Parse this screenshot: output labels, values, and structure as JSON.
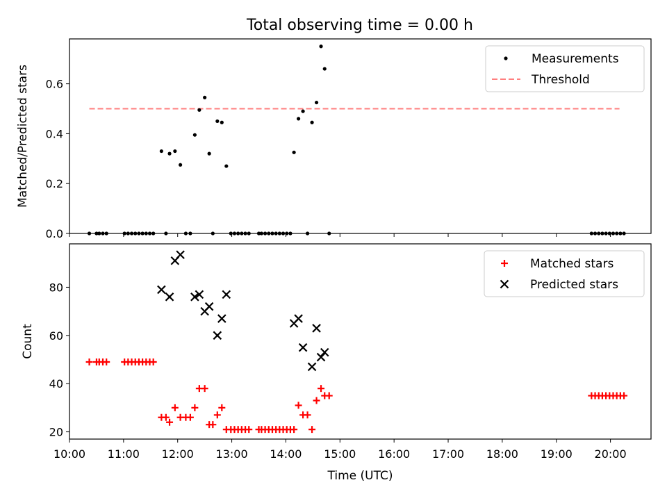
{
  "title": "Total observing time = 0.00 h",
  "chart_data": [
    {
      "type": "scatter",
      "ylabel": "Matched/Predicted stars",
      "xlim": [
        "10:00",
        "20:45"
      ],
      "ylim": [
        0,
        0.78
      ],
      "yticks": [
        0.0,
        0.2,
        0.4,
        0.6
      ],
      "legend": {
        "placement": "top-right",
        "entries": [
          "Measurements",
          "Threshold"
        ]
      },
      "threshold": {
        "name": "Threshold",
        "y": 0.5,
        "x_start": "10:22",
        "x_end": "20:10",
        "color": "#ff7f7f",
        "style": "dashed"
      },
      "series": [
        {
          "name": "Measurements",
          "marker": "dot",
          "color": "#000000",
          "points": [
            [
              "10:22",
              0
            ],
            [
              "10:30",
              0
            ],
            [
              "10:33",
              0
            ],
            [
              "10:37",
              0
            ],
            [
              "10:41",
              0
            ],
            [
              "11:01",
              0
            ],
            [
              "11:05",
              0
            ],
            [
              "11:09",
              0
            ],
            [
              "11:13",
              0
            ],
            [
              "11:17",
              0
            ],
            [
              "11:21",
              0
            ],
            [
              "11:25",
              0
            ],
            [
              "11:29",
              0
            ],
            [
              "11:33",
              0
            ],
            [
              "11:42",
              0.33
            ],
            [
              "11:47",
              0
            ],
            [
              "11:51",
              0.32
            ],
            [
              "11:57",
              0.33
            ],
            [
              "12:03",
              0.275
            ],
            [
              "12:09",
              0
            ],
            [
              "12:14",
              0
            ],
            [
              "12:19",
              0.395
            ],
            [
              "12:24",
              0.495
            ],
            [
              "12:30",
              0.545
            ],
            [
              "12:35",
              0.32
            ],
            [
              "12:39",
              0
            ],
            [
              "12:44",
              0.45
            ],
            [
              "12:49",
              0.445
            ],
            [
              "12:54",
              0.27
            ],
            [
              "12:59",
              0
            ],
            [
              "13:03",
              0
            ],
            [
              "13:07",
              0
            ],
            [
              "13:11",
              0
            ],
            [
              "13:15",
              0
            ],
            [
              "13:19",
              0
            ],
            [
              "13:30",
              0
            ],
            [
              "13:33",
              0
            ],
            [
              "13:37",
              0
            ],
            [
              "13:41",
              0
            ],
            [
              "13:45",
              0
            ],
            [
              "13:49",
              0
            ],
            [
              "13:53",
              0
            ],
            [
              "13:57",
              0
            ],
            [
              "14:01",
              0
            ],
            [
              "14:05",
              0
            ],
            [
              "14:09",
              0.325
            ],
            [
              "14:14",
              0.46
            ],
            [
              "14:19",
              0.49
            ],
            [
              "14:24",
              0
            ],
            [
              "14:29",
              0.445
            ],
            [
              "14:34",
              0.525
            ],
            [
              "14:39",
              0.75
            ],
            [
              "14:43",
              0.66
            ],
            [
              "14:48",
              0
            ],
            [
              "19:39",
              0
            ],
            [
              "19:43",
              0
            ],
            [
              "19:47",
              0
            ],
            [
              "19:51",
              0
            ],
            [
              "19:55",
              0
            ],
            [
              "19:59",
              0
            ],
            [
              "20:03",
              0
            ],
            [
              "20:07",
              0
            ],
            [
              "20:11",
              0
            ],
            [
              "20:15",
              0
            ]
          ]
        }
      ]
    },
    {
      "type": "scatter",
      "title": "",
      "xlabel": "Time (UTC)",
      "ylabel": "Count",
      "xlim": [
        "10:00",
        "20:45"
      ],
      "ylim": [
        17,
        98
      ],
      "yticks": [
        20,
        40,
        60,
        80
      ],
      "xticks": [
        "10:00",
        "11:00",
        "12:00",
        "13:00",
        "14:00",
        "15:00",
        "16:00",
        "17:00",
        "18:00",
        "19:00",
        "20:00"
      ],
      "legend": {
        "placement": "top-right",
        "entries": [
          "Matched stars",
          "Predicted stars"
        ]
      },
      "series": [
        {
          "name": "Matched stars",
          "marker": "plus",
          "color": "#ff0000",
          "points": [
            [
              "10:22",
              49
            ],
            [
              "10:30",
              49
            ],
            [
              "10:33",
              49
            ],
            [
              "10:37",
              49
            ],
            [
              "10:41",
              49
            ],
            [
              "11:01",
              49
            ],
            [
              "11:05",
              49
            ],
            [
              "11:09",
              49
            ],
            [
              "11:13",
              49
            ],
            [
              "11:17",
              49
            ],
            [
              "11:21",
              49
            ],
            [
              "11:25",
              49
            ],
            [
              "11:29",
              49
            ],
            [
              "11:33",
              49
            ],
            [
              "11:42",
              26
            ],
            [
              "11:47",
              26
            ],
            [
              "11:51",
              24
            ],
            [
              "11:57",
              30
            ],
            [
              "12:03",
              26
            ],
            [
              "12:09",
              26
            ],
            [
              "12:14",
              26
            ],
            [
              "12:19",
              30
            ],
            [
              "12:24",
              38
            ],
            [
              "12:30",
              38
            ],
            [
              "12:35",
              23
            ],
            [
              "12:39",
              23
            ],
            [
              "12:44",
              27
            ],
            [
              "12:49",
              30
            ],
            [
              "12:54",
              21
            ],
            [
              "12:59",
              21
            ],
            [
              "13:03",
              21
            ],
            [
              "13:07",
              21
            ],
            [
              "13:11",
              21
            ],
            [
              "13:15",
              21
            ],
            [
              "13:19",
              21
            ],
            [
              "13:30",
              21
            ],
            [
              "13:33",
              21
            ],
            [
              "13:37",
              21
            ],
            [
              "13:41",
              21
            ],
            [
              "13:45",
              21
            ],
            [
              "13:49",
              21
            ],
            [
              "13:53",
              21
            ],
            [
              "13:57",
              21
            ],
            [
              "14:01",
              21
            ],
            [
              "14:05",
              21
            ],
            [
              "14:09",
              21
            ],
            [
              "14:14",
              31
            ],
            [
              "14:19",
              27
            ],
            [
              "14:24",
              27
            ],
            [
              "14:29",
              21
            ],
            [
              "14:34",
              33
            ],
            [
              "14:39",
              38
            ],
            [
              "14:43",
              35
            ],
            [
              "14:48",
              35
            ],
            [
              "19:39",
              35
            ],
            [
              "19:43",
              35
            ],
            [
              "19:47",
              35
            ],
            [
              "19:51",
              35
            ],
            [
              "19:55",
              35
            ],
            [
              "19:59",
              35
            ],
            [
              "20:03",
              35
            ],
            [
              "20:07",
              35
            ],
            [
              "20:11",
              35
            ],
            [
              "20:15",
              35
            ]
          ]
        },
        {
          "name": "Predicted stars",
          "marker": "x",
          "color": "#000000",
          "points": [
            [
              "11:42",
              79
            ],
            [
              "11:51",
              76
            ],
            [
              "11:57",
              91
            ],
            [
              "12:03",
              93.5
            ],
            [
              "12:19",
              76
            ],
            [
              "12:24",
              77
            ],
            [
              "12:30",
              70
            ],
            [
              "12:35",
              72
            ],
            [
              "12:44",
              60
            ],
            [
              "12:49",
              67
            ],
            [
              "12:54",
              77
            ],
            [
              "14:09",
              65
            ],
            [
              "14:14",
              67
            ],
            [
              "14:19",
              55
            ],
            [
              "14:29",
              47
            ],
            [
              "14:34",
              63
            ],
            [
              "14:39",
              51
            ],
            [
              "14:43",
              53
            ]
          ]
        }
      ]
    }
  ]
}
